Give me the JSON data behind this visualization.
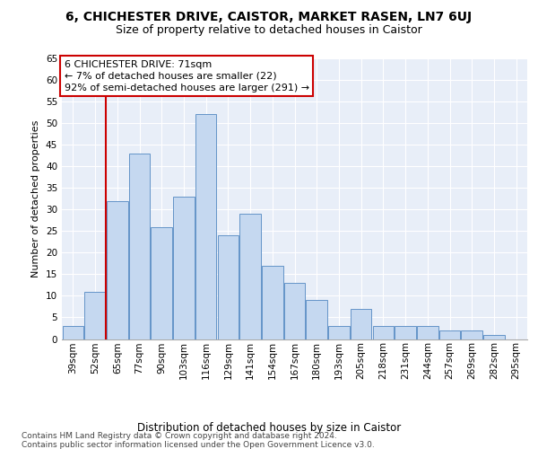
{
  "title1": "6, CHICHESTER DRIVE, CAISTOR, MARKET RASEN, LN7 6UJ",
  "title2": "Size of property relative to detached houses in Caistor",
  "xlabel": "Distribution of detached houses by size in Caistor",
  "ylabel": "Number of detached properties",
  "categories": [
    "39sqm",
    "52sqm",
    "65sqm",
    "77sqm",
    "90sqm",
    "103sqm",
    "116sqm",
    "129sqm",
    "141sqm",
    "154sqm",
    "167sqm",
    "180sqm",
    "193sqm",
    "205sqm",
    "218sqm",
    "231sqm",
    "244sqm",
    "257sqm",
    "269sqm",
    "282sqm",
    "295sqm"
  ],
  "values": [
    3,
    11,
    32,
    43,
    26,
    33,
    52,
    24,
    29,
    17,
    13,
    9,
    3,
    7,
    3,
    3,
    3,
    2,
    2,
    1,
    0
  ],
  "bar_color": "#c5d8f0",
  "bar_edge_color": "#6494c8",
  "annotation_text": "6 CHICHESTER DRIVE: 71sqm\n← 7% of detached houses are smaller (22)\n92% of semi-detached houses are larger (291) →",
  "annotation_box_color": "#ffffff",
  "annotation_box_edge_color": "#cc0000",
  "vline_color": "#cc0000",
  "vline_x": 1.5,
  "ylim": [
    0,
    65
  ],
  "yticks": [
    0,
    5,
    10,
    15,
    20,
    25,
    30,
    35,
    40,
    45,
    50,
    55,
    60,
    65
  ],
  "background_color": "#e8eef8",
  "grid_color": "#ffffff",
  "footer_text": "Contains HM Land Registry data © Crown copyright and database right 2024.\nContains public sector information licensed under the Open Government Licence v3.0.",
  "title1_fontsize": 10,
  "title2_fontsize": 9,
  "xlabel_fontsize": 8.5,
  "ylabel_fontsize": 8,
  "tick_fontsize": 7.5,
  "annotation_fontsize": 8,
  "footer_fontsize": 6.5
}
